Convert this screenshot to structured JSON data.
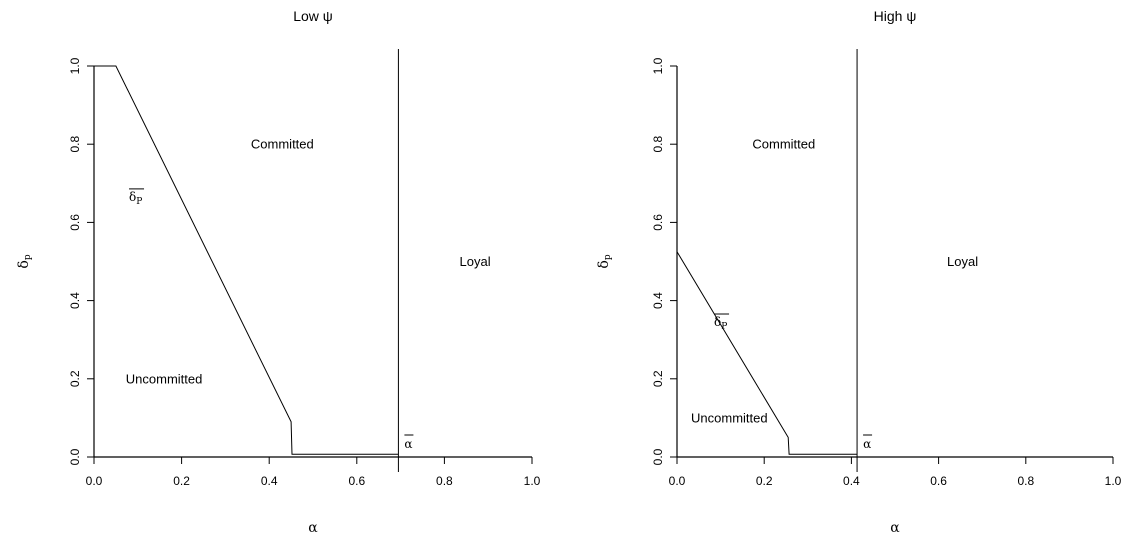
{
  "chart_data": [
    {
      "type": "line",
      "title": "Low ψ",
      "xlabel": "α",
      "ylabel": "δ_P",
      "xlim": [
        0,
        1
      ],
      "ylim": [
        0,
        1
      ],
      "x_ticks": [
        "0.0",
        "0.2",
        "0.4",
        "0.6",
        "0.8",
        "1.0"
      ],
      "y_ticks": [
        "0.0",
        "0.2",
        "0.4",
        "0.6",
        "0.8",
        "1.0"
      ],
      "grid": false,
      "series": [
        {
          "points": [
            [
              0.0,
              1.0
            ],
            [
              0.05,
              1.0
            ],
            [
              0.45,
              0.09
            ],
            [
              0.452,
              0.007
            ],
            [
              0.695,
              0.007
            ]
          ]
        }
      ],
      "vline": {
        "x": 0.695,
        "label": "α"
      },
      "regions": [
        {
          "label": "Committed",
          "x": 0.43,
          "y": 0.8
        },
        {
          "label": "Uncommitted",
          "x": 0.16,
          "y": 0.2
        },
        {
          "label": "Loyal",
          "x": 0.87,
          "y": 0.5
        }
      ],
      "curve_label": {
        "text": "δ",
        "sub": "P",
        "x": 0.08,
        "y": 0.655
      }
    },
    {
      "type": "line",
      "title": "High ψ",
      "xlabel": "α",
      "ylabel": "δ_P",
      "xlim": [
        0,
        1
      ],
      "ylim": [
        0,
        1
      ],
      "x_ticks": [
        "0.0",
        "0.2",
        "0.4",
        "0.6",
        "0.8",
        "1.0"
      ],
      "y_ticks": [
        "0.0",
        "0.2",
        "0.4",
        "0.6",
        "0.8",
        "1.0"
      ],
      "grid": false,
      "series": [
        {
          "points": [
            [
              0.0,
              0.525
            ],
            [
              0.255,
              0.05
            ],
            [
              0.257,
              0.007
            ],
            [
              0.413,
              0.007
            ]
          ]
        }
      ],
      "vline": {
        "x": 0.413,
        "label": "α"
      },
      "regions": [
        {
          "label": "Committed",
          "x": 0.245,
          "y": 0.8
        },
        {
          "label": "Uncommitted",
          "x": 0.12,
          "y": 0.1
        },
        {
          "label": "Loyal",
          "x": 0.655,
          "y": 0.5
        }
      ],
      "curve_label": {
        "text": "δ",
        "sub": "P",
        "x": 0.085,
        "y": 0.335
      }
    }
  ]
}
